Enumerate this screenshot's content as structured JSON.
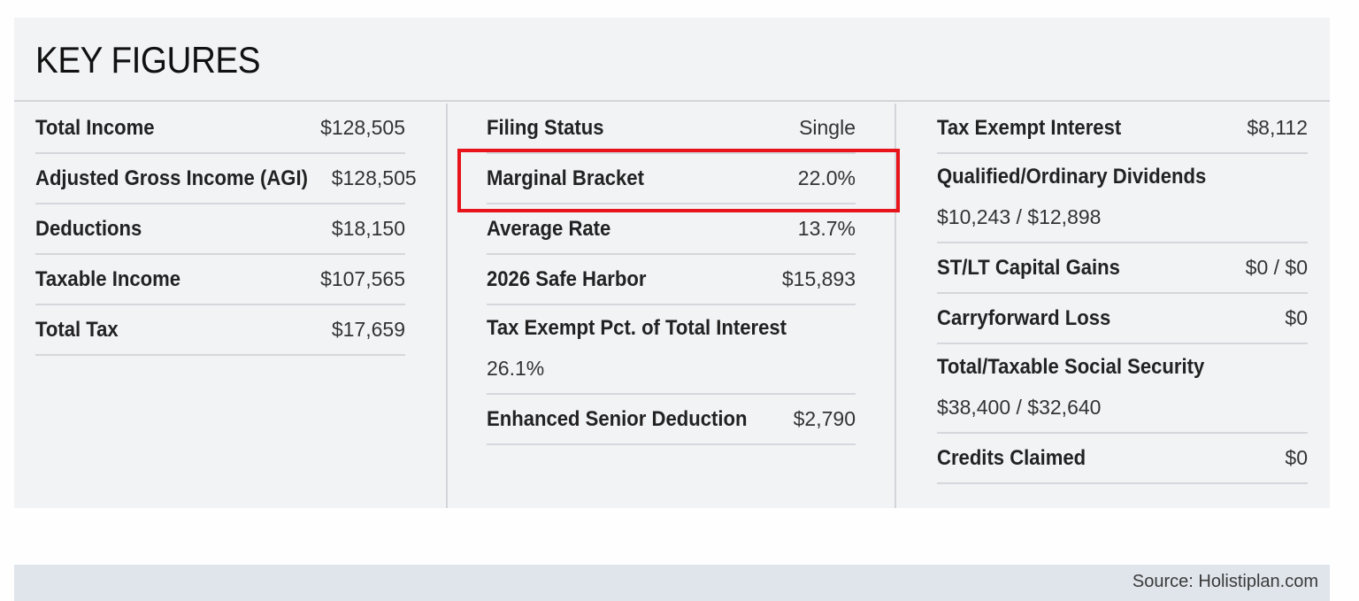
{
  "title": "KEY FIGURES",
  "columns": [
    {
      "rows": [
        {
          "label": "Total Income",
          "value": "$128,505",
          "layout": "inline"
        },
        {
          "label": "Adjusted Gross Income (AGI)",
          "value": "$128,505",
          "layout": "inline"
        },
        {
          "label": "Deductions",
          "value": "$18,150",
          "layout": "inline"
        },
        {
          "label": "Taxable Income",
          "value": "$107,565",
          "layout": "inline"
        },
        {
          "label": "Total Tax",
          "value": "$17,659",
          "layout": "inline"
        }
      ]
    },
    {
      "rows": [
        {
          "label": "Filing Status",
          "value": "Single",
          "layout": "inline"
        },
        {
          "label": "Marginal Bracket",
          "value": "22.0%",
          "layout": "inline"
        },
        {
          "label": "Average Rate",
          "value": "13.7%",
          "layout": "inline"
        },
        {
          "label": "2026 Safe Harbor",
          "value": "$15,893",
          "layout": "inline"
        },
        {
          "label": "Tax Exempt Pct. of Total Interest",
          "value": "26.1%",
          "layout": "stacked"
        },
        {
          "label": "Enhanced Senior Deduction",
          "value": "$2,790",
          "layout": "inline"
        }
      ]
    },
    {
      "rows": [
        {
          "label": "Tax Exempt Interest",
          "value": "$8,112",
          "layout": "inline"
        },
        {
          "label": "Qualified/Ordinary Dividends",
          "value": "$10,243 / $12,898",
          "layout": "stacked"
        },
        {
          "label": "ST/LT Capital Gains",
          "value": "$0 / $0",
          "layout": "inline"
        },
        {
          "label": "Carryforward Loss",
          "value": "$0",
          "layout": "inline"
        },
        {
          "label": "Total/Taxable Social Security",
          "value": "$38,400 / $32,640",
          "layout": "stacked"
        },
        {
          "label": "Credits Claimed",
          "value": "$0",
          "layout": "inline"
        }
      ]
    }
  ],
  "highlight": {
    "row": "Marginal Bracket",
    "color": "#e8141b"
  },
  "footer": {
    "source": "Source: Holistiplan.com"
  },
  "colors": {
    "card_bg": "#f2f3f5",
    "divider": "#d2d5da",
    "footer_bg": "#dfe5ea"
  }
}
